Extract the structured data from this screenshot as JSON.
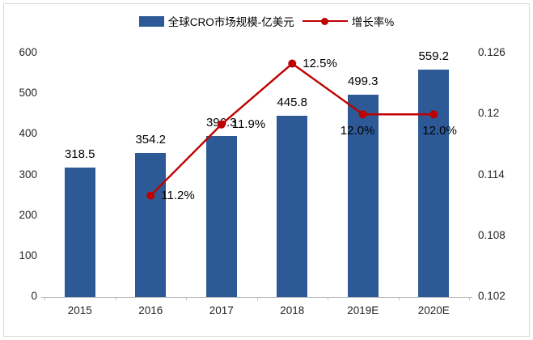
{
  "chart_data": {
    "type": "combo-bar-line",
    "categories": [
      "2015",
      "2016",
      "2017",
      "2018",
      "2019E",
      "2020E"
    ],
    "series": [
      {
        "name": "全球CRO市场规模-亿美元",
        "type": "bar",
        "axis": "left",
        "color": "#2D5A96",
        "values": [
          318.5,
          354.2,
          396.3,
          445.8,
          499.3,
          559.2
        ],
        "labels": [
          "318.5",
          "354.2",
          "396.3",
          "445.8",
          "499.3",
          "559.2"
        ]
      },
      {
        "name": "增长率%",
        "type": "line",
        "axis": "right",
        "color": "#C00000",
        "values": [
          null,
          0.112,
          0.119,
          0.125,
          0.12,
          0.12
        ],
        "labels": [
          "",
          "11.2%",
          "11.9%",
          "12.5%",
          "12.0%",
          "12.0%"
        ]
      }
    ],
    "left_axis": {
      "min": 0,
      "max": 600,
      "step": 100,
      "ticks": [
        "0",
        "100",
        "200",
        "300",
        "400",
        "500",
        "600"
      ]
    },
    "right_axis": {
      "min": 0.102,
      "max": 0.126,
      "step": 0.006,
      "ticks": [
        "0.102",
        "0.108",
        "0.114",
        "0.12",
        "0.126"
      ]
    },
    "legend_position": "top",
    "grid": false,
    "title": "",
    "frame_border_color": "#d9d9d9",
    "axis_line_color": "#bfbfbf"
  }
}
